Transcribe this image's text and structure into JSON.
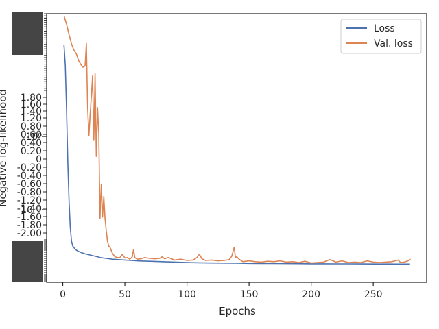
{
  "chart_data": {
    "type": "line",
    "title": "",
    "xlabel": "Epochs",
    "ylabel": "Negative log-likelihood",
    "xlim": [
      -13,
      293
    ],
    "ylim": [
      -2.9,
      3.6
    ],
    "xticks": [
      0,
      50,
      100,
      150,
      200,
      250
    ],
    "yticks_major": [
      "10⁰",
      "10⁻¹"
    ],
    "yticks_overlap": [
      "1.80",
      "1.60",
      "1.40",
      "1.20",
      "0.80",
      "0.60",
      "0.40",
      "0.20",
      "0",
      "-0.20",
      "-0.40",
      "-0.60",
      "-0.80",
      "-1.20",
      "-1.40",
      "-1.60",
      "-1.80",
      "-2.00"
    ],
    "grid": false,
    "legend_position": "top-right",
    "series": [
      {
        "name": "Loss",
        "color": "#4c72b0",
        "points": [
          [
            1,
            2.84
          ],
          [
            2,
            2.35
          ],
          [
            3,
            1.3
          ],
          [
            4,
            0.05
          ],
          [
            5,
            -0.9
          ],
          [
            6,
            -1.55
          ],
          [
            7,
            -1.9
          ],
          [
            8,
            -2.02
          ],
          [
            10,
            -2.1
          ],
          [
            12,
            -2.14
          ],
          [
            15,
            -2.18
          ],
          [
            18,
            -2.21
          ],
          [
            21,
            -2.23
          ],
          [
            25,
            -2.26
          ],
          [
            28,
            -2.28
          ],
          [
            30,
            -2.3
          ],
          [
            35,
            -2.32
          ],
          [
            40,
            -2.34
          ],
          [
            45,
            -2.35
          ],
          [
            50,
            -2.36
          ],
          [
            55,
            -2.37
          ],
          [
            60,
            -2.38
          ],
          [
            65,
            -2.385
          ],
          [
            70,
            -2.39
          ],
          [
            80,
            -2.4
          ],
          [
            90,
            -2.41
          ],
          [
            100,
            -2.42
          ],
          [
            110,
            -2.425
          ],
          [
            120,
            -2.43
          ],
          [
            130,
            -2.433
          ],
          [
            140,
            -2.436
          ],
          [
            150,
            -2.44
          ],
          [
            160,
            -2.442
          ],
          [
            170,
            -2.444
          ],
          [
            180,
            -2.446
          ],
          [
            190,
            -2.448
          ],
          [
            200,
            -2.45
          ],
          [
            210,
            -2.451
          ],
          [
            220,
            -2.452
          ],
          [
            230,
            -2.453
          ],
          [
            240,
            -2.454
          ],
          [
            250,
            -2.455
          ],
          [
            260,
            -2.456
          ],
          [
            270,
            -2.457
          ],
          [
            279,
            -2.457
          ]
        ]
      },
      {
        "name": "Val. loss",
        "color": "#dd8452",
        "points": [
          [
            1,
            3.55
          ],
          [
            3,
            3.35
          ],
          [
            5,
            3.1
          ],
          [
            7,
            2.87
          ],
          [
            9,
            2.72
          ],
          [
            11,
            2.62
          ],
          [
            13,
            2.45
          ],
          [
            15,
            2.35
          ],
          [
            16,
            2.31
          ],
          [
            17,
            2.31
          ],
          [
            18,
            2.35
          ],
          [
            19,
            2.88
          ],
          [
            20,
            1.35
          ],
          [
            21,
            0.65
          ],
          [
            22,
            1.15
          ],
          [
            23,
            1.6
          ],
          [
            24,
            2.1
          ],
          [
            25,
            0.55
          ],
          [
            26,
            2.15
          ],
          [
            27,
            0.15
          ],
          [
            28,
            1.33
          ],
          [
            29,
            0.72
          ],
          [
            30,
            -1.35
          ],
          [
            31,
            -0.52
          ],
          [
            32,
            -1.32
          ],
          [
            33,
            -0.82
          ],
          [
            34,
            -1.35
          ],
          [
            35,
            -1.65
          ],
          [
            36,
            -1.9
          ],
          [
            37,
            -2.02
          ],
          [
            38,
            -2.05
          ],
          [
            40,
            -2.2
          ],
          [
            42,
            -2.28
          ],
          [
            44,
            -2.3
          ],
          [
            46,
            -2.3
          ],
          [
            48,
            -2.22
          ],
          [
            50,
            -2.31
          ],
          [
            52,
            -2.3
          ],
          [
            54,
            -2.34
          ],
          [
            56,
            -2.28
          ],
          [
            57,
            -2.1
          ],
          [
            58,
            -2.3
          ],
          [
            60,
            -2.34
          ],
          [
            63,
            -2.33
          ],
          [
            66,
            -2.3
          ],
          [
            70,
            -2.32
          ],
          [
            74,
            -2.33
          ],
          [
            78,
            -2.32
          ],
          [
            80,
            -2.28
          ],
          [
            82,
            -2.33
          ],
          [
            85,
            -2.3
          ],
          [
            90,
            -2.36
          ],
          [
            95,
            -2.34
          ],
          [
            100,
            -2.37
          ],
          [
            105,
            -2.36
          ],
          [
            108,
            -2.3
          ],
          [
            110,
            -2.22
          ],
          [
            112,
            -2.33
          ],
          [
            115,
            -2.37
          ],
          [
            120,
            -2.36
          ],
          [
            125,
            -2.38
          ],
          [
            130,
            -2.37
          ],
          [
            134,
            -2.35
          ],
          [
            136,
            -2.27
          ],
          [
            138,
            -2.05
          ],
          [
            139,
            -2.3
          ],
          [
            140,
            -2.28
          ],
          [
            142,
            -2.34
          ],
          [
            145,
            -2.4
          ],
          [
            150,
            -2.38
          ],
          [
            155,
            -2.4
          ],
          [
            160,
            -2.41
          ],
          [
            165,
            -2.39
          ],
          [
            170,
            -2.4
          ],
          [
            175,
            -2.38
          ],
          [
            180,
            -2.41
          ],
          [
            185,
            -2.4
          ],
          [
            190,
            -2.42
          ],
          [
            195,
            -2.39
          ],
          [
            200,
            -2.43
          ],
          [
            205,
            -2.42
          ],
          [
            210,
            -2.41
          ],
          [
            215,
            -2.35
          ],
          [
            220,
            -2.41
          ],
          [
            225,
            -2.38
          ],
          [
            230,
            -2.42
          ],
          [
            235,
            -2.41
          ],
          [
            240,
            -2.42
          ],
          [
            245,
            -2.38
          ],
          [
            250,
            -2.41
          ],
          [
            255,
            -2.42
          ],
          [
            260,
            -2.41
          ],
          [
            265,
            -2.4
          ],
          [
            270,
            -2.36
          ],
          [
            272,
            -2.42
          ],
          [
            275,
            -2.41
          ],
          [
            278,
            -2.38
          ],
          [
            280,
            -2.33
          ]
        ]
      }
    ]
  }
}
